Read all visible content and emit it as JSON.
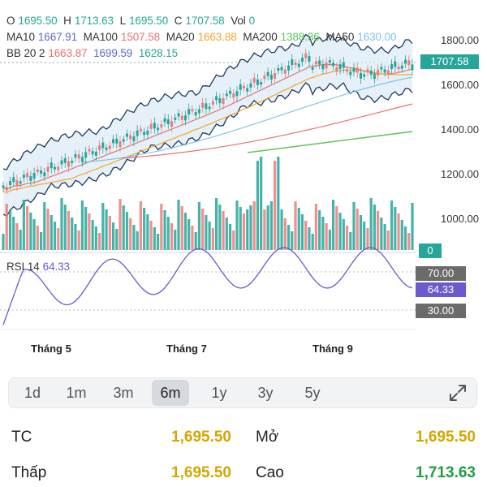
{
  "ohlc": {
    "o_label": "O",
    "o_value": "1695.50",
    "h_label": "H",
    "h_value": "1713.63",
    "l_label": "L",
    "l_value": "1695.50",
    "c_label": "C",
    "c_value": "1707.58",
    "vol_label": "Vol",
    "vol_value": "0"
  },
  "ma_line": {
    "ma10_label": "MA10",
    "ma10_value": "1667.91",
    "ma100_label": "MA100",
    "ma100_value": "1507.58",
    "ma20_label": "MA20",
    "ma20_value": "1663.88",
    "ma200_label": "MA200",
    "ma200_value": "1388.36",
    "ma50_label": "MA50",
    "ma50_value": "1630.00"
  },
  "bb_line": {
    "bb_label": "BB 20 2",
    "bb_mid": "1663.87",
    "bb_upper": "1699.59",
    "bb_lower": "1628.15"
  },
  "y_axis": [
    "1800.00",
    "1600.00",
    "1400.00",
    "1200.00",
    "1000.00"
  ],
  "price_tag": "1707.58",
  "volume_tag": "0",
  "rsi": {
    "label": "RSI 14",
    "value": "64.33",
    "upper": "70.00",
    "lower": "30.00"
  },
  "months": [
    "Tháng 5",
    "Tháng 7",
    "Tháng 9"
  ],
  "timeframes": [
    "1d",
    "1m",
    "3m",
    "6m",
    "1y",
    "3y",
    "5y"
  ],
  "active_timeframe": "6m",
  "stats": {
    "tc_label": "TC",
    "tc_value": "1,695.50",
    "open_label": "Mở",
    "open_value": "1,695.50",
    "low_label": "Thấp",
    "low_value": "1,695.50",
    "high_label": "Cao",
    "high_value": "1,713.63"
  },
  "colors": {
    "up": "#26a69a",
    "down": "#ef7a7a",
    "ma10": "#e57373",
    "ma20": "#f5a623",
    "ma50": "#80c4e8",
    "ma100": "#e57373",
    "ma200": "#5ec35e",
    "bb": "#1e3a5f",
    "rsi": "#6a5acd",
    "yellow_value": "#d4a600",
    "green_value": "#1f9d3f"
  }
}
